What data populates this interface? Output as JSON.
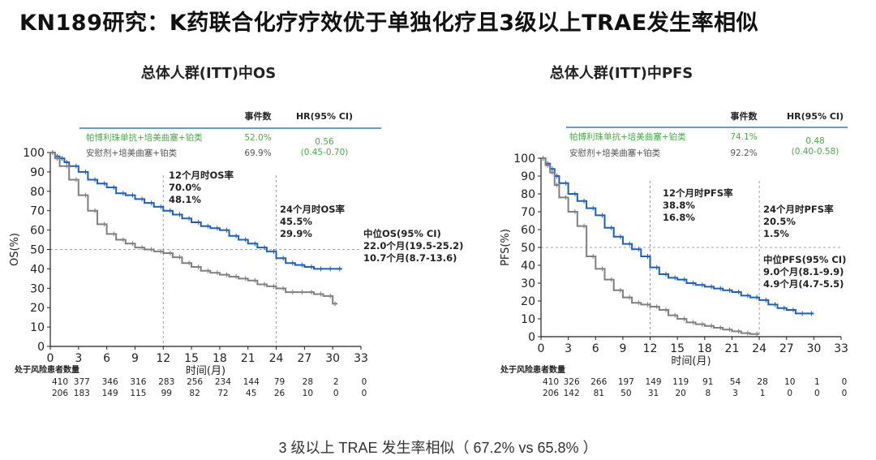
{
  "title": "KN189研究：K药联合化疗疗效优于单独化疗且3级以上TRAE发生率相似",
  "footer_note": "3 级以上 TRAE 发生率相似（ 67.2% vs 65.8% ）",
  "colors": {
    "pembro": "#1f5fb5",
    "placebo": "#7f7f7f",
    "hr_green": "#4ca84c",
    "legend_line": "#3b79c2"
  },
  "chart_data": [
    {
      "id": "os",
      "type": "line",
      "title": "总体人群(ITT)中OS",
      "xlabel": "时间(月)",
      "ylabel": "OS(%)",
      "xlim": [
        0,
        33
      ],
      "ylim": [
        0,
        100
      ],
      "xticks": [
        "0",
        "3",
        "6",
        "9",
        "12",
        "15",
        "18",
        "21",
        "24",
        "27",
        "30",
        "33"
      ],
      "yticks": [
        "0",
        "10",
        "20",
        "30",
        "40",
        "50",
        "60",
        "70",
        "80",
        "90",
        "100"
      ],
      "legend_header": {
        "events": "事件数",
        "hr": "HR(95% CI)"
      },
      "series": [
        {
          "name": "帕博利珠单抗+培美曲塞+铂类",
          "events": "52.0%",
          "color": "#1f5fb5",
          "x": [
            0,
            0.5,
            1,
            1.5,
            2,
            3,
            4,
            5,
            6,
            7,
            8,
            9,
            10,
            11,
            12,
            13,
            14,
            15,
            16,
            17,
            18,
            19,
            20,
            21,
            22,
            23,
            24,
            25,
            26,
            27,
            28,
            29,
            30,
            31
          ],
          "y": [
            100,
            98,
            97,
            95,
            93,
            90,
            86,
            84,
            82,
            79,
            78,
            76,
            74,
            72,
            70,
            68,
            66,
            64,
            62,
            61,
            60,
            57,
            55,
            53,
            51,
            49,
            45.5,
            43,
            42,
            41,
            40,
            40,
            40,
            40
          ]
        },
        {
          "name": "安慰剂+培美曲塞+铂类",
          "events": "69.9%",
          "color": "#7f7f7f",
          "x": [
            0,
            0.5,
            1,
            2,
            3,
            4,
            5,
            6,
            7,
            8,
            9,
            10,
            11,
            12,
            13,
            14,
            15,
            16,
            17,
            18,
            19,
            20,
            21,
            22,
            23,
            24,
            25,
            26,
            27,
            28,
            29,
            30,
            30.5
          ],
          "y": [
            100,
            97,
            93,
            86,
            78,
            70,
            63,
            58,
            55,
            53,
            51,
            50,
            49,
            48.1,
            46,
            43,
            41,
            39,
            38,
            37,
            36,
            35,
            34,
            32,
            31,
            29.9,
            28,
            28,
            28,
            27,
            26,
            22,
            22
          ]
        }
      ],
      "hr": {
        "value": "0.56",
        "ci": "(0.45-0.70)"
      },
      "annotations": [
        {
          "lines": [
            "12个月时OS率",
            "70.0%",
            "48.1%"
          ]
        },
        {
          "lines": [
            "24个月时OS率",
            "45.5%",
            "29.9%"
          ]
        },
        {
          "lines": [
            "中位OS(95% CI)",
            "22.0个月(19.5-25.2)",
            "10.7个月(8.7-13.6)"
          ]
        }
      ],
      "reference_lines": {
        "y": 50,
        "x": [
          12,
          24
        ]
      },
      "risk_table": {
        "label": "处于风险患者数量",
        "rows": [
          [
            "410",
            "377",
            "346",
            "316",
            "283",
            "256",
            "234",
            "144",
            "79",
            "28",
            "2",
            "0"
          ],
          [
            "206",
            "183",
            "149",
            "115",
            "99",
            "82",
            "72",
            "45",
            "26",
            "10",
            "0",
            "0"
          ]
        ]
      }
    },
    {
      "id": "pfs",
      "type": "line",
      "title": "总体人群(ITT)中PFS",
      "xlabel": "时间(月)",
      "ylabel": "PFS(%)",
      "xlim": [
        0,
        33
      ],
      "ylim": [
        0,
        100
      ],
      "xticks": [
        "0",
        "3",
        "6",
        "9",
        "12",
        "15",
        "18",
        "21",
        "24",
        "27",
        "30",
        "33"
      ],
      "yticks": [
        "0",
        "10",
        "20",
        "30",
        "40",
        "50",
        "60",
        "70",
        "80",
        "90",
        "100"
      ],
      "legend_header": {
        "events": "事件数",
        "hr": "HR(95% CI)"
      },
      "series": [
        {
          "name": "帕博利珠单抗+培美曲塞+铂类",
          "events": "74.1%",
          "color": "#1f5fb5",
          "x": [
            0,
            0.5,
            1,
            1.5,
            2,
            3,
            4,
            5,
            6,
            7,
            8,
            9,
            10,
            11,
            12,
            13,
            14,
            15,
            16,
            17,
            18,
            19,
            20,
            21,
            22,
            23,
            24,
            25,
            26,
            27,
            28,
            29,
            30
          ],
          "y": [
            100,
            97,
            94,
            90,
            86,
            80,
            76,
            72,
            68,
            61,
            56,
            52,
            49,
            45,
            38.8,
            35,
            33,
            32,
            30,
            29,
            28,
            27,
            26,
            25,
            23,
            22,
            20.5,
            18,
            16,
            15,
            13,
            13,
            13
          ]
        },
        {
          "name": "安慰剂+培美曲塞+铂类",
          "events": "92.2%",
          "color": "#7f7f7f",
          "x": [
            0,
            0.5,
            1,
            1.5,
            2,
            3,
            4,
            5,
            6,
            7,
            8,
            9,
            10,
            11,
            12,
            13,
            14,
            15,
            16,
            17,
            18,
            19,
            20,
            21,
            22,
            23,
            24
          ],
          "y": [
            100,
            96,
            92,
            85,
            78,
            70,
            62,
            45,
            38,
            32,
            26,
            22,
            19,
            18,
            16.8,
            15,
            12,
            10,
            8,
            7,
            6,
            5,
            4,
            3,
            2,
            1.5,
            1.5
          ]
        }
      ],
      "hr": {
        "value": "0.48",
        "ci": "(0.40-0.58)"
      },
      "annotations": [
        {
          "lines": [
            "12个月时PFS率",
            "38.8%",
            "16.8%"
          ]
        },
        {
          "lines": [
            "24个月时PFS率",
            "20.5%",
            "1.5%"
          ]
        },
        {
          "lines": [
            "中位PFS(95% CI)",
            "9.0个月(8.1-9.9)",
            "4.9个月(4.7-5.5)"
          ]
        }
      ],
      "reference_lines": {
        "y": 50,
        "x": [
          12,
          24
        ]
      },
      "risk_table": {
        "label": "处于风险患者数量",
        "rows": [
          [
            "410",
            "326",
            "266",
            "197",
            "149",
            "119",
            "91",
            "54",
            "28",
            "10",
            "1",
            "0"
          ],
          [
            "206",
            "142",
            "81",
            "50",
            "31",
            "20",
            "8",
            "3",
            "1",
            "0",
            "0",
            "0"
          ]
        ]
      }
    }
  ]
}
